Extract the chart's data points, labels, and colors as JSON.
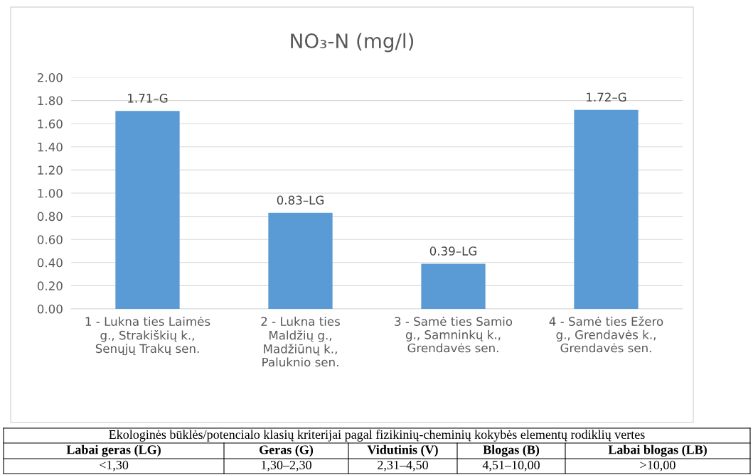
{
  "chart_data": {
    "type": "bar",
    "title": "NO₃-N (mg/l)",
    "categories": [
      "1 - Lukna ties Laimės\ng., Strakiškių k.,\nSenųjų Trakų sen.",
      "2 - Lukna ties\nMaldžių g.,\nMadžiūnų k.,\nPaluknio sen.",
      "3 - Samė ties Samio\ng., Samninkų k.,\nGrendavės sen.",
      "4 - Samė ties Ežero\ng., Grendavės k.,\nGrendavės sen."
    ],
    "values": [
      1.71,
      0.83,
      0.39,
      1.72
    ],
    "value_labels": [
      "1.71–G",
      "0.83–LG",
      "0.39–LG",
      "1.72–G"
    ],
    "color": "#5b9bd5",
    "ylim": [
      0,
      2
    ],
    "yticks": [
      {
        "value": 0,
        "label": "0.00"
      },
      {
        "value": 0.2,
        "label": "0.20"
      },
      {
        "value": 0.4,
        "label": "0.40"
      },
      {
        "value": 0.6,
        "label": "0.60"
      },
      {
        "value": 0.8,
        "label": "0.80"
      },
      {
        "value": 1.0,
        "label": "1.00"
      },
      {
        "value": 1.2,
        "label": "1.20"
      },
      {
        "value": 1.4,
        "label": "1.40"
      },
      {
        "value": 1.6,
        "label": "1.60"
      },
      {
        "value": 1.8,
        "label": "1.80"
      },
      {
        "value": 2.0,
        "label": "2.00"
      }
    ],
    "grid": "y",
    "annotations": [
      "Ekologinės būklės/potencialo klasių kriterijai pagal fizikinių-cheminių kokybės elementų rodiklių vertes",
      "Labai geras (LG)",
      "Geras (G)",
      "Vidutinis (V)",
      "Blogas (B)",
      "Labai blogas (LB)",
      "<1,30",
      "1,30–2,30",
      "2,31–4,50",
      "4,51–10,00",
      ">10,00"
    ]
  }
}
